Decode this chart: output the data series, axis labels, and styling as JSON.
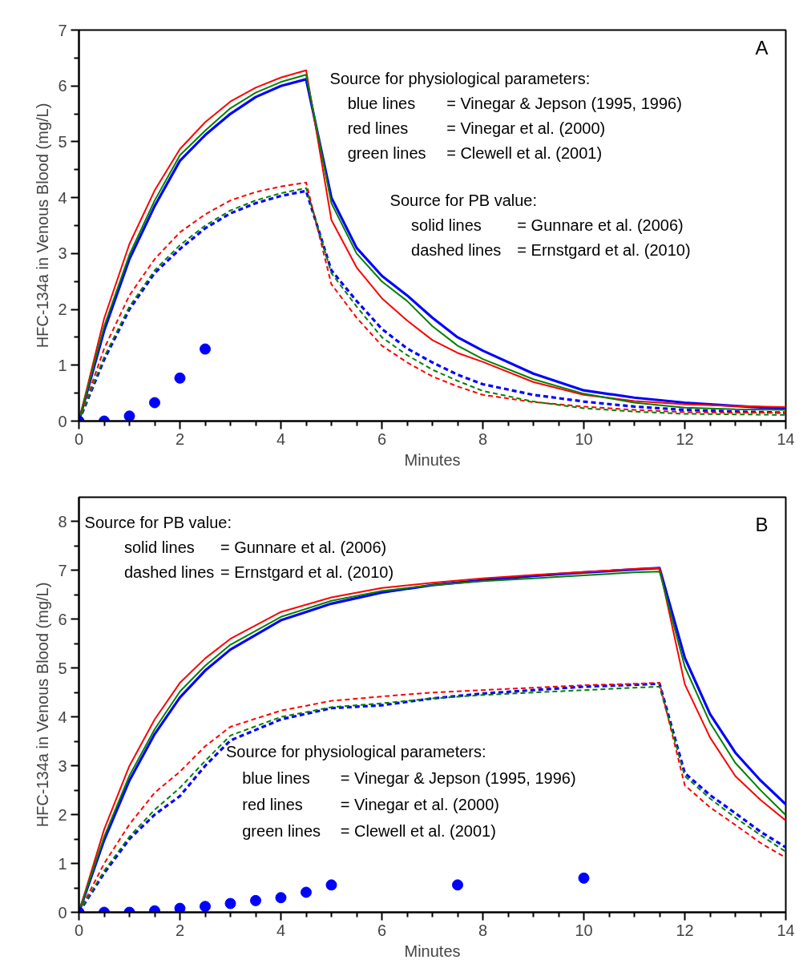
{
  "chart_data": [
    {
      "type": "line",
      "xlabel": "Minutes",
      "ylabel": "HFC-134a in Venous Blood (mg/L)",
      "xlim": [
        0,
        14
      ],
      "ylim": [
        0,
        7
      ],
      "xticks": [
        0,
        2,
        4,
        6,
        8,
        10,
        12,
        14
      ],
      "yticks": [
        0,
        1,
        2,
        3,
        4,
        5,
        6,
        7
      ],
      "grid": false,
      "annotations": [
        "A",
        "Source for physiological parameters:",
        "blue lines = Vinegar & Jepson (1995, 1996)",
        "red lines = Vinegar et al. (2000)",
        "green lines = Clewell et al. (2001)",
        "Source for PB value:",
        "solid lines = Gunnare et al. (2006)",
        "dashed lines = Ernstgard et al. (2010)"
      ],
      "x": [
        0,
        0.5,
        1,
        1.5,
        2,
        2.5,
        3,
        3.5,
        4,
        4.5,
        5,
        5.5,
        6,
        6.5,
        7,
        7.5,
        8,
        9,
        10,
        11,
        12,
        13,
        14
      ],
      "series": [
        {
          "color": "#0000ff",
          "line_style": "solid",
          "values": [
            0,
            1.62,
            2.9,
            3.85,
            4.66,
            5.12,
            5.5,
            5.8,
            6.0,
            6.12,
            4.0,
            3.1,
            2.6,
            2.25,
            1.85,
            1.5,
            1.26,
            0.85,
            0.55,
            0.42,
            0.33,
            0.27,
            0.22
          ]
        },
        {
          "color": "#ff0000",
          "line_style": "solid",
          "values": [
            0,
            1.84,
            3.17,
            4.13,
            4.87,
            5.35,
            5.72,
            5.97,
            6.15,
            6.28,
            3.6,
            2.75,
            2.2,
            1.8,
            1.45,
            1.22,
            1.06,
            0.7,
            0.47,
            0.36,
            0.3,
            0.27,
            0.25
          ]
        },
        {
          "color": "#008000",
          "line_style": "solid",
          "values": [
            0,
            1.7,
            2.98,
            3.95,
            4.76,
            5.2,
            5.6,
            5.88,
            6.07,
            6.2,
            3.9,
            3.0,
            2.5,
            2.15,
            1.7,
            1.35,
            1.11,
            0.75,
            0.49,
            0.33,
            0.24,
            0.21,
            0.2
          ]
        },
        {
          "color": "#0000ff",
          "line_style": "dashed",
          "values": [
            0,
            1.1,
            2.0,
            2.65,
            3.08,
            3.45,
            3.72,
            3.9,
            4.03,
            4.12,
            2.7,
            2.15,
            1.65,
            1.3,
            1.05,
            0.83,
            0.66,
            0.47,
            0.35,
            0.26,
            0.2,
            0.17,
            0.15
          ]
        },
        {
          "color": "#ff0000",
          "line_style": "dashed",
          "values": [
            0,
            1.3,
            2.25,
            2.9,
            3.38,
            3.7,
            3.95,
            4.1,
            4.2,
            4.27,
            2.45,
            1.85,
            1.35,
            1.05,
            0.8,
            0.62,
            0.47,
            0.34,
            0.26,
            0.2,
            0.16,
            0.15,
            0.15
          ]
        },
        {
          "color": "#008000",
          "line_style": "dashed",
          "values": [
            0,
            1.15,
            2.05,
            2.7,
            3.15,
            3.5,
            3.77,
            3.95,
            4.08,
            4.17,
            2.65,
            2.05,
            1.5,
            1.18,
            0.92,
            0.72,
            0.54,
            0.35,
            0.23,
            0.17,
            0.13,
            0.12,
            0.11
          ]
        },
        {
          "type": "scatter",
          "marker": "circle",
          "color": "#0000ff",
          "x": [
            0,
            0.5,
            1,
            1.5,
            2,
            2.5
          ],
          "values": [
            0,
            0,
            0.09,
            0.33,
            0.77,
            1.29
          ]
        }
      ]
    },
    {
      "type": "line",
      "xlabel": "Minutes",
      "ylabel": "HFC-134a in Venous Blood (mg/L)",
      "xlim": [
        0,
        14
      ],
      "ylim": [
        0,
        8.5
      ],
      "xticks": [
        0,
        2,
        4,
        6,
        8,
        10,
        12,
        14
      ],
      "yticks": [
        0,
        1,
        2,
        3,
        4,
        5,
        6,
        7,
        8
      ],
      "grid": false,
      "annotations": [
        "B",
        "Source for PB value:",
        "solid lines = Gunnare et al. (2006)",
        "dashed lines = Ernstgard et al. (2010)",
        "Source for physiological parameters:",
        "blue lines = Vinegar & Jepson (1995, 1996)",
        "red lines = Vinegar et al. (2000)",
        "green lines = Clewell et al. (2001)"
      ],
      "x": [
        0,
        0.5,
        1,
        1.5,
        2,
        2.5,
        3,
        4,
        5,
        6,
        7,
        8,
        9,
        10,
        11,
        11.5,
        12,
        12.5,
        13,
        13.5,
        14
      ],
      "series": [
        {
          "color": "#0000ff",
          "line_style": "solid",
          "values": [
            0,
            1.48,
            2.7,
            3.65,
            4.4,
            4.95,
            5.38,
            5.98,
            6.32,
            6.55,
            6.7,
            6.8,
            6.89,
            6.96,
            7.02,
            7.05,
            5.21,
            4.06,
            3.27,
            2.7,
            2.21
          ]
        },
        {
          "color": "#ff0000",
          "line_style": "solid",
          "values": [
            0,
            1.7,
            3.0,
            3.95,
            4.7,
            5.2,
            5.6,
            6.15,
            6.45,
            6.64,
            6.75,
            6.84,
            6.91,
            6.97,
            7.03,
            7.05,
            4.67,
            3.58,
            2.79,
            2.3,
            1.88
          ]
        },
        {
          "color": "#008000",
          "line_style": "solid",
          "values": [
            0,
            1.55,
            2.8,
            3.75,
            4.52,
            5.05,
            5.48,
            6.05,
            6.38,
            6.58,
            6.7,
            6.78,
            6.84,
            6.9,
            6.96,
            6.98,
            5.03,
            3.88,
            3.06,
            2.5,
            1.99
          ]
        },
        {
          "color": "#0000ff",
          "line_style": "dashed",
          "values": [
            0,
            0.8,
            1.5,
            2.0,
            2.38,
            3.0,
            3.52,
            3.95,
            4.18,
            4.24,
            4.38,
            4.48,
            4.55,
            4.62,
            4.66,
            4.68,
            2.85,
            2.4,
            2.03,
            1.65,
            1.33
          ]
        },
        {
          "color": "#ff0000",
          "line_style": "dashed",
          "values": [
            0,
            1.0,
            1.8,
            2.45,
            2.88,
            3.4,
            3.8,
            4.13,
            4.33,
            4.42,
            4.5,
            4.55,
            4.6,
            4.65,
            4.68,
            4.7,
            2.6,
            2.15,
            1.79,
            1.42,
            1.12
          ]
        },
        {
          "color": "#008000",
          "line_style": "dashed",
          "values": [
            0,
            0.85,
            1.55,
            2.1,
            2.55,
            3.1,
            3.62,
            4.0,
            4.2,
            4.28,
            4.38,
            4.45,
            4.5,
            4.55,
            4.6,
            4.62,
            2.79,
            2.33,
            1.94,
            1.58,
            1.24
          ]
        },
        {
          "type": "scatter",
          "marker": "circle",
          "color": "#0000ff",
          "x": [
            0,
            0.5,
            1,
            1.5,
            2,
            2.5,
            3,
            3.5,
            4,
            4.5,
            5,
            7.5,
            10
          ],
          "values": [
            0,
            0,
            0,
            0.03,
            0.08,
            0.12,
            0.18,
            0.24,
            0.3,
            0.41,
            0.56,
            0.56,
            0.7
          ]
        }
      ]
    }
  ]
}
